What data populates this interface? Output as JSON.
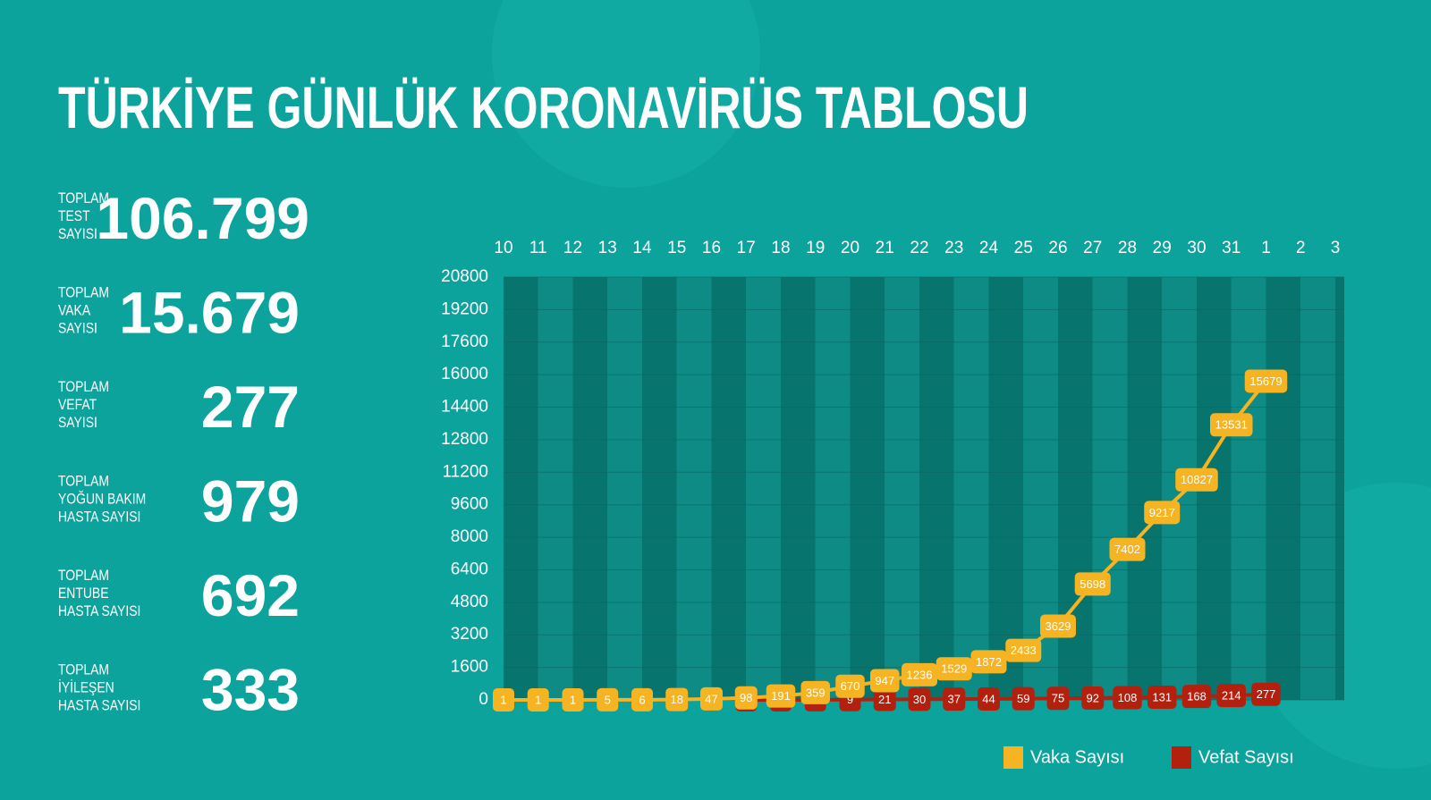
{
  "title": "TÜRKİYE GÜNLÜK KORONAVİRÜS TABLOSU",
  "stats": [
    {
      "label": [
        "TOPLAM",
        "TEST",
        "SAYISI"
      ],
      "value": "106.799"
    },
    {
      "label": [
        "TOPLAM",
        "VAKA",
        "SAYISI"
      ],
      "value": "15.679"
    },
    {
      "label": [
        "TOPLAM",
        "VEFAT",
        "SAYISI"
      ],
      "value": "277"
    },
    {
      "label": [
        "TOPLAM",
        "YOĞUN BAKIM",
        "HASTA SAYISI"
      ],
      "value": "979"
    },
    {
      "label": [
        "TOPLAM",
        "ENTUBE",
        "HASTA SAYISI"
      ],
      "value": "692"
    },
    {
      "label": [
        "TOPLAM",
        "İYİLEŞEN",
        "HASTA SAYISI"
      ],
      "value": "333"
    }
  ],
  "chart_data": {
    "type": "line",
    "categories": [
      "10",
      "11",
      "12",
      "13",
      "14",
      "15",
      "16",
      "17",
      "18",
      "19",
      "20",
      "21",
      "22",
      "23",
      "24",
      "25",
      "26",
      "27",
      "28",
      "29",
      "30",
      "31",
      "1",
      "2",
      "3"
    ],
    "series": [
      {
        "name": "Vaka Sayısı",
        "color": "#f6b322",
        "values": [
          1,
          1,
          1,
          5,
          6,
          18,
          47,
          98,
          191,
          359,
          670,
          947,
          1236,
          1529,
          1872,
          2433,
          3629,
          5698,
          7402,
          9217,
          10827,
          13531,
          15679,
          null,
          null
        ]
      },
      {
        "name": "Vefat Sayısı",
        "color": "#b3200e",
        "values": [
          null,
          null,
          null,
          null,
          null,
          null,
          null,
          1,
          2,
          3,
          9,
          21,
          30,
          37,
          44,
          59,
          75,
          92,
          108,
          131,
          168,
          214,
          277,
          null,
          null
        ]
      }
    ],
    "ylim": [
      0,
      20800
    ],
    "yticks": [
      0,
      1600,
      3200,
      4800,
      6400,
      8000,
      9600,
      11200,
      12800,
      14400,
      16000,
      17600,
      19200,
      20800
    ],
    "grid": true
  }
}
